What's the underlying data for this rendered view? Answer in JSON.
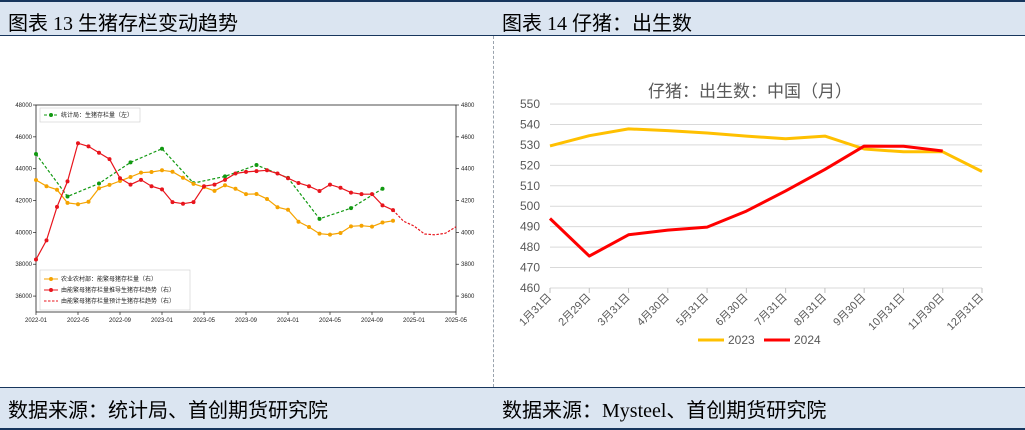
{
  "left": {
    "header": "图表 13  生猪存栏变动趋势",
    "footer": "数据来源：统计局、首创期货研究院",
    "chart_data": {
      "type": "line",
      "x": [
        "2022-01",
        "2022-05",
        "2022-09",
        "2023-01",
        "2023-05",
        "2023-09",
        "2024-01",
        "2024-05",
        "2024-09",
        "2025-01",
        "2025-05"
      ],
      "ylim_left": [
        35000,
        48000
      ],
      "ylim_right": [
        3500,
        4800
      ],
      "yticks_left": [
        "36000",
        "38000",
        "40000",
        "42000",
        "44000",
        "46000",
        "48000"
      ],
      "yticks_right": [
        "3600",
        "3800",
        "4000",
        "4200",
        "4400",
        "4600",
        "4800"
      ],
      "legend": [
        "统计局：生猪存栏量（左）",
        "农业农村部：能繁母猪存栏量（右）",
        "由能繁母猪存栏量推导生猪存栏趋势（右）",
        "由能繁母猪存栏量预计生猪存栏趋势（右）"
      ],
      "series": [
        {
          "name": "统计局：生猪存栏量（左）",
          "axis": "left",
          "color": "#119911",
          "dash": true,
          "points": [
            [
              0,
              44922
            ],
            [
              3,
              42253
            ],
            [
              6,
              43070
            ],
            [
              9,
              44394
            ],
            [
              12,
              45256
            ],
            [
              15,
              43094
            ],
            [
              18,
              43517
            ],
            [
              21,
              44229
            ],
            [
              24,
              43422
            ],
            [
              27,
              40850
            ],
            [
              30,
              41520
            ],
            [
              33,
              42741
            ]
          ]
        },
        {
          "name": "农业农村部：能繁母猪存栏量（右）",
          "axis": "right",
          "color": "#f5a300",
          "dash": false,
          "points": [
            [
              0,
              4329
            ],
            [
              1,
              4290
            ],
            [
              2,
              4268
            ],
            [
              3,
              4185
            ],
            [
              4,
              4177
            ],
            [
              5,
              4192
            ],
            [
              6,
              4277
            ],
            [
              7,
              4298
            ],
            [
              8,
              4323
            ],
            [
              9,
              4348
            ],
            [
              10,
              4375
            ],
            [
              11,
              4379
            ],
            [
              12,
              4390
            ],
            [
              13,
              4381
            ],
            [
              14,
              4343
            ],
            [
              15,
              4305
            ],
            [
              16,
              4284
            ],
            [
              17,
              4261
            ],
            [
              18,
              4296
            ],
            [
              19,
              4274
            ],
            [
              20,
              4240
            ],
            [
              21,
              4241
            ],
            [
              22,
              4210
            ],
            [
              23,
              4158
            ],
            [
              24,
              4142
            ],
            [
              25,
              4067
            ],
            [
              26,
              4034
            ],
            [
              27,
              3992
            ],
            [
              28,
              3986
            ],
            [
              29,
              3996
            ],
            [
              30,
              4038
            ],
            [
              31,
              4042
            ],
            [
              32,
              4036
            ],
            [
              33,
              4062
            ],
            [
              34,
              4073
            ]
          ]
        },
        {
          "name": "由能繁母猪存栏量推导生猪存栏趋势（右）",
          "axis": "right",
          "color": "#e8141c",
          "dash": false,
          "points": [
            [
              0,
              3830
            ],
            [
              1,
              3950
            ],
            [
              2,
              4160
            ],
            [
              3,
              4320
            ],
            [
              4,
              4560
            ],
            [
              5,
              4540
            ],
            [
              6,
              4500
            ],
            [
              7,
              4460
            ],
            [
              8,
              4340
            ],
            [
              9,
              4300
            ],
            [
              10,
              4330
            ],
            [
              11,
              4290
            ],
            [
              12,
              4270
            ],
            [
              13,
              4190
            ],
            [
              14,
              4180
            ],
            [
              15,
              4190
            ],
            [
              16,
              4290
            ],
            [
              17,
              4300
            ],
            [
              18,
              4330
            ],
            [
              19,
              4370
            ],
            [
              20,
              4380
            ],
            [
              21,
              4385
            ],
            [
              22,
              4390
            ],
            [
              23,
              4370
            ],
            [
              24,
              4340
            ],
            [
              25,
              4310
            ],
            [
              26,
              4290
            ],
            [
              27,
              4260
            ],
            [
              28,
              4300
            ],
            [
              29,
              4280
            ],
            [
              30,
              4250
            ],
            [
              31,
              4240
            ],
            [
              32,
              4240
            ],
            [
              33,
              4170
            ],
            [
              34,
              4140
            ]
          ]
        },
        {
          "name": "由能繁母猪存栏量预计生猪存栏趋势（右）",
          "axis": "right",
          "color": "#e8141c",
          "dash": true,
          "points": [
            [
              34,
              4140
            ],
            [
              35,
              4070
            ],
            [
              36,
              4040
            ],
            [
              37,
              3990
            ],
            [
              38,
              3985
            ],
            [
              39,
              3995
            ],
            [
              40,
              4035
            ]
          ]
        }
      ]
    }
  },
  "right": {
    "header": "图表 14  仔猪：出生数",
    "footer": "数据来源：Mysteel、首创期货研究院",
    "chart_data": {
      "type": "line",
      "title": "仔猪：出生数：中国（月）",
      "categories": [
        "1月31日",
        "2月29日",
        "3月31日",
        "4月30日",
        "5月31日",
        "6月30日",
        "7月31日",
        "8月31日",
        "9月30日",
        "10月31日",
        "11月30日",
        "12月31日"
      ],
      "ylim": [
        460,
        550
      ],
      "yticks": [
        "460",
        "470",
        "480",
        "490",
        "500",
        "510",
        "520",
        "530",
        "540",
        "550"
      ],
      "series": [
        {
          "name": "2023",
          "color": "#ffc000",
          "values": [
            529.5,
            534.5,
            537.8,
            537.0,
            535.8,
            534.3,
            533.0,
            534.3,
            528.0,
            526.6,
            526.6,
            517.0
          ]
        },
        {
          "name": "2024",
          "color": "#ff0000",
          "values": [
            494.0,
            475.6,
            486.0,
            488.3,
            489.8,
            497.6,
            507.5,
            518.0,
            529.4,
            529.3,
            527.0,
            null
          ]
        }
      ]
    }
  },
  "colors": {
    "header_bg": "#dbe5f1",
    "rule": "#17365d"
  }
}
